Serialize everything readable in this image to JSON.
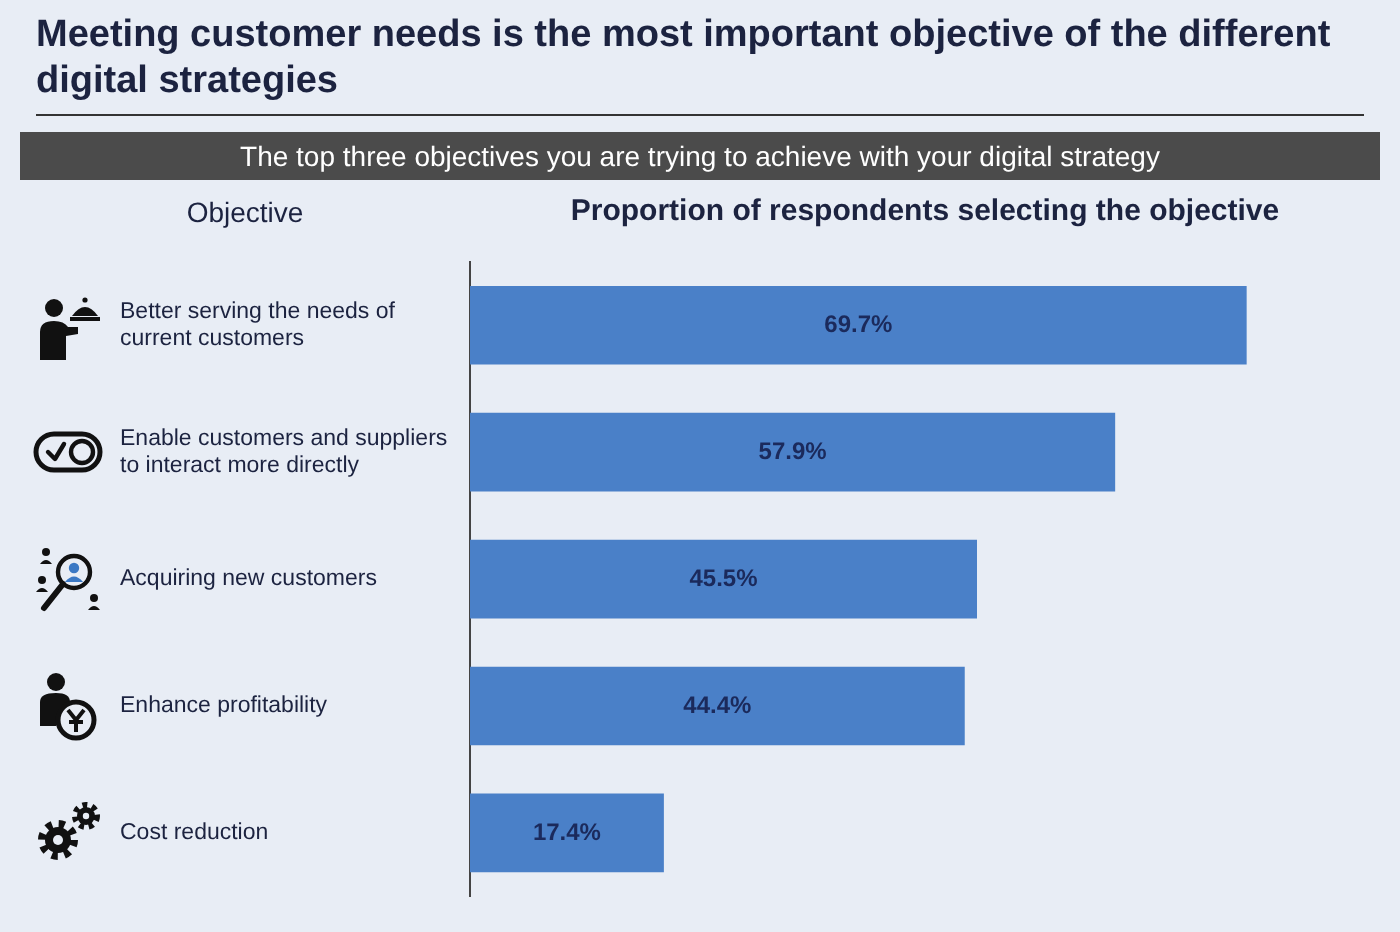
{
  "chart_data": {
    "type": "bar",
    "orientation": "horizontal",
    "title": "Meeting customer needs is the most important objective of the different digital strategies",
    "subtitle": "The top three objectives you are trying to achieve with your digital strategy",
    "xlabel": "Proportion of respondents selecting the objective",
    "ylabel": "Objective",
    "categories": [
      "Better serving the needs of current customers",
      "Enable customers and suppliers to interact more directly",
      "Acquiring new customers",
      "Enhance profitability",
      "Cost reduction"
    ],
    "values": [
      69.7,
      57.9,
      45.5,
      44.4,
      17.4
    ],
    "value_labels": [
      "69.7%",
      "57.9%",
      "45.5%",
      "44.4%",
      "17.4%"
    ],
    "color": "#4a80c8"
  }
}
